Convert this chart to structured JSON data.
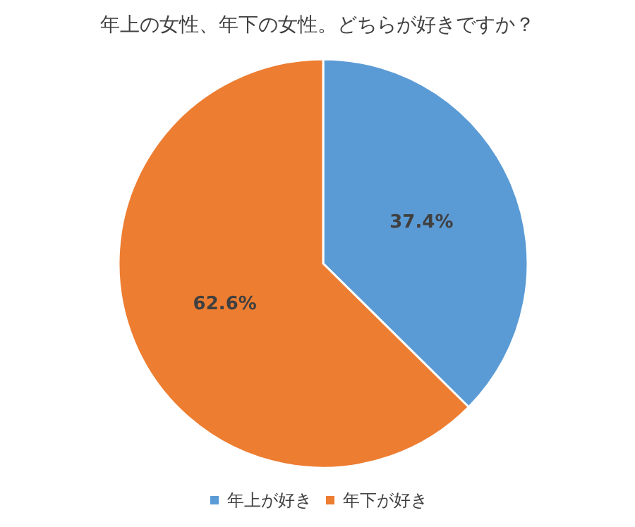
{
  "chart_data": {
    "type": "pie",
    "title": "年上の女性、年下の女性。どちらが好きですか？",
    "categories": [
      "年上が好き",
      "年下が好き"
    ],
    "values": [
      37.4,
      62.6
    ],
    "colors": [
      "#5b9bd5",
      "#ed7d31"
    ],
    "value_labels": [
      "37.4%",
      "62.6%"
    ],
    "legend": "bottom"
  }
}
